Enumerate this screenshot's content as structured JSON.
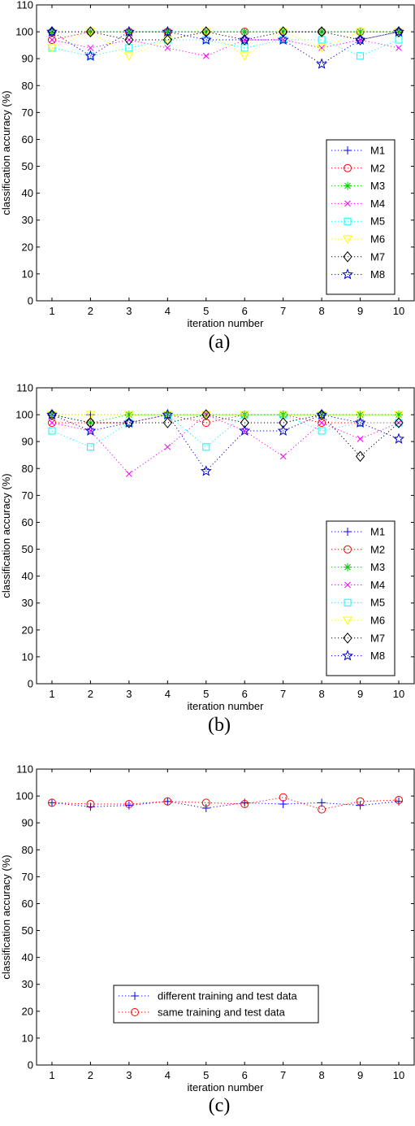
{
  "chart_data": [
    {
      "type": "line",
      "caption": "(a)",
      "xlabel": "iteration number",
      "ylabel": "classification accuracy (%)",
      "xlim": [
        0.6,
        10.4
      ],
      "ylim": [
        0,
        110
      ],
      "xticks": [
        1,
        2,
        3,
        4,
        5,
        6,
        7,
        8,
        9,
        10
      ],
      "yticks": [
        0,
        10,
        20,
        30,
        40,
        50,
        60,
        70,
        80,
        90,
        100,
        110
      ],
      "x": [
        1,
        2,
        3,
        4,
        5,
        6,
        7,
        8,
        9,
        10
      ],
      "grid": false,
      "legend_position": "right",
      "series": [
        {
          "name": "M1",
          "marker": "plus",
          "color": "#0000ff",
          "values": [
            100,
            100,
            100,
            100,
            100,
            100,
            100,
            100,
            100,
            100
          ]
        },
        {
          "name": "M2",
          "marker": "circle",
          "color": "#ff0000",
          "values": [
            97,
            100,
            100,
            100,
            100,
            100,
            100,
            100,
            100,
            100
          ]
        },
        {
          "name": "M3",
          "marker": "asterisk",
          "color": "#00cc00",
          "values": [
            100,
            100,
            100,
            100,
            100,
            100,
            100,
            100,
            100,
            100
          ]
        },
        {
          "name": "M4",
          "marker": "cross",
          "color": "#ff00ff",
          "values": [
            97,
            94,
            97,
            94,
            91,
            97,
            97,
            94,
            97,
            94
          ]
        },
        {
          "name": "M5",
          "marker": "square",
          "color": "#00ffff",
          "values": [
            94,
            91,
            94,
            97,
            97,
            94,
            97,
            97,
            91,
            97
          ]
        },
        {
          "name": "M6",
          "marker": "triangle-down",
          "color": "#ffff00",
          "values": [
            94,
            100,
            91,
            97,
            100,
            91,
            100,
            94,
            100,
            100
          ]
        },
        {
          "name": "M7",
          "marker": "diamond",
          "color": "#000000",
          "values": [
            100,
            100,
            97,
            97,
            100,
            97,
            100,
            100,
            97,
            100
          ]
        },
        {
          "name": "M8",
          "marker": "star",
          "color": "#0000cc",
          "values": [
            100,
            91,
            100,
            100,
            97,
            97,
            97,
            88,
            97,
            100
          ]
        }
      ]
    },
    {
      "type": "line",
      "caption": "(b)",
      "xlabel": "iteration number",
      "ylabel": "classification accuracy (%)",
      "xlim": [
        0.6,
        10.4
      ],
      "ylim": [
        0,
        110
      ],
      "xticks": [
        1,
        2,
        3,
        4,
        5,
        6,
        7,
        8,
        9,
        10
      ],
      "yticks": [
        0,
        10,
        20,
        30,
        40,
        50,
        60,
        70,
        80,
        90,
        100,
        110
      ],
      "x": [
        1,
        2,
        3,
        4,
        5,
        6,
        7,
        8,
        9,
        10
      ],
      "grid": false,
      "legend_position": "right",
      "series": [
        {
          "name": "M1",
          "marker": "plus",
          "color": "#0000ff",
          "values": [
            100,
            100,
            100,
            100,
            100,
            100,
            100,
            100,
            100,
            100
          ]
        },
        {
          "name": "M2",
          "marker": "circle",
          "color": "#ff0000",
          "values": [
            97,
            97,
            97,
            100,
            97,
            100,
            100,
            97,
            97,
            97
          ]
        },
        {
          "name": "M3",
          "marker": "asterisk",
          "color": "#00cc00",
          "values": [
            100,
            97,
            100,
            100,
            100,
            100,
            100,
            100,
            100,
            100
          ]
        },
        {
          "name": "M4",
          "marker": "cross",
          "color": "#ff00ff",
          "values": [
            97,
            94,
            78,
            88,
            100,
            94,
            84.5,
            97,
            91,
            97
          ]
        },
        {
          "name": "M5",
          "marker": "square",
          "color": "#00ffff",
          "values": [
            94,
            88,
            97,
            100,
            88,
            100,
            100,
            94,
            97,
            97
          ]
        },
        {
          "name": "M6",
          "marker": "triangle-down",
          "color": "#ffff00",
          "values": [
            100,
            100,
            100,
            100,
            100,
            100,
            100,
            100,
            100,
            100
          ]
        },
        {
          "name": "M7",
          "marker": "diamond",
          "color": "#000000",
          "values": [
            100,
            97,
            97,
            97,
            100,
            97,
            97,
            100,
            84.5,
            97
          ]
        },
        {
          "name": "M8",
          "marker": "star",
          "color": "#0000cc",
          "values": [
            100,
            94,
            97,
            100,
            79,
            94,
            94,
            100,
            97,
            91
          ]
        }
      ]
    },
    {
      "type": "line",
      "caption": "(c)",
      "xlabel": "iteration number",
      "ylabel": "classification accuracy (%)",
      "xlim": [
        0.6,
        10.4
      ],
      "ylim": [
        0,
        110
      ],
      "xticks": [
        1,
        2,
        3,
        4,
        5,
        6,
        7,
        8,
        9,
        10
      ],
      "yticks": [
        0,
        10,
        20,
        30,
        40,
        50,
        60,
        70,
        80,
        90,
        100,
        110
      ],
      "x": [
        1,
        2,
        3,
        4,
        5,
        6,
        7,
        8,
        9,
        10
      ],
      "grid": false,
      "legend_position": "lower center",
      "series": [
        {
          "name": "different training and test data",
          "marker": "plus",
          "color": "#0000ff",
          "values": [
            97.5,
            96,
            96.5,
            98,
            95.5,
            97.5,
            97,
            97.5,
            96.5,
            98
          ]
        },
        {
          "name": "same training and test data",
          "marker": "circle",
          "color": "#ff0000",
          "values": [
            97.5,
            97,
            97,
            98,
            97.5,
            97,
            99.5,
            95,
            98,
            98.5
          ]
        }
      ]
    }
  ]
}
